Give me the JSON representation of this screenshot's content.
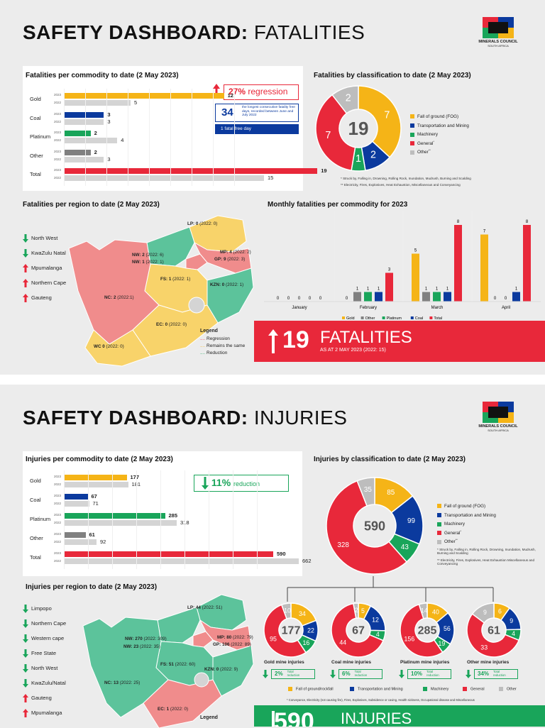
{
  "colors": {
    "gold": "#f5b417",
    "coal": "#0b3a9e",
    "platinum": "#19a55a",
    "general": "#e8283a",
    "other": "#bdbdbd",
    "y2022": "#d4d4d4",
    "bg": "#ececec",
    "teal": "#5cc39b",
    "pink": "#f08c8c",
    "yellow": "#f8d36a"
  },
  "fat": {
    "title_bold": "SAFETY DASHBOARD:",
    "title_light": "FATALITIES",
    "logo_text": "MINERALS COUNCIL",
    "logo_sub": "SOUTH AFRICA",
    "commodity_title": "Fatalities per commodity to date (2 May 2023)",
    "commodities": [
      {
        "name": "Gold",
        "v2023": 12,
        "v2022": 5,
        "y1": "2023",
        "y2": "2022"
      },
      {
        "name": "Coal",
        "v2023": 3,
        "v2022": 3,
        "y1": "2023",
        "y2": "2022"
      },
      {
        "name": "Platinum",
        "v2023": 2,
        "v2022": 4,
        "y1": "2023",
        "y2": "2022"
      },
      {
        "name": "Other",
        "v2023": 2,
        "v2022": 3,
        "y1": "2023",
        "y2": "2022"
      },
      {
        "name": "Total",
        "v2023": 19,
        "v2022": 15,
        "y1": "2023",
        "y2": "2022"
      }
    ],
    "regression_pct": "27%",
    "regression_word": "regression",
    "free_days": "34",
    "free_days_text": "the longest consecutive fatality free days, recorded between June and July 2022",
    "fatal_free": "1 fatal free day",
    "class_title": "Fatalities by classification to date (2 May 2023)",
    "class_total": "19",
    "class_values": [
      7,
      2,
      1,
      7,
      2
    ],
    "class_legend": [
      "Fall of ground (FOG)",
      "Transportation and Mining",
      "Machinery",
      "General",
      "Other"
    ],
    "class_legend_sup": [
      "",
      "",
      "",
      "*",
      "**"
    ],
    "class_note1": "* Struck by, Falling in, Drowning, Rolling Rock, Inundation, Mudrush, Burning and Scalding",
    "class_note2": "** Electricity, Fires, Explosives, Heat Exhaustion, Miscellaneous and Conveyancing",
    "region_title": "Fatalities per region to date (2 May 2023)",
    "region_list": [
      "North West",
      "KwaZulu Natal",
      "Mpumalanga",
      "Northern Cape",
      "Gauteng"
    ],
    "region_dir": [
      "down",
      "down",
      "up",
      "up",
      "up"
    ],
    "region_labels": {
      "lp": "LP: 0",
      "lp_s": "(2022: 0)",
      "nw2": "NW: 2",
      "nw2_s": "(2022: 6)",
      "nw1": "NW: 1",
      "nw1_s": "(2022: 1)",
      "mp": "MP: 4",
      "mp_s": "(2022: 2)",
      "gp": "GP: 9",
      "gp_s": "(2022: 3)",
      "fs": "FS: 1",
      "fs_s": "(2022: 1)",
      "kzn": "KZN: 0",
      "kzn_s": "(2022: 1)",
      "nc": "NC: 2",
      "nc_s": "(2022:1)",
      "ec": "EC: 0",
      "ec_s": "(2022: 0)",
      "wc": "WC 0",
      "wc_s": "(2022: 0)"
    },
    "legend_title": "Legend",
    "legend_items": [
      "Regression",
      "Remains the same",
      "Reduction"
    ],
    "monthly_title": "Monthly fatalities per commodity for 2023",
    "months": [
      "January",
      "February",
      "March",
      "April"
    ],
    "monthly": {
      "Gold": [
        0,
        0,
        5,
        7
      ],
      "Other": [
        0,
        1,
        1,
        0
      ],
      "Platinum": [
        0,
        1,
        1,
        0
      ],
      "Coal": [
        0,
        1,
        1,
        1
      ],
      "Total": [
        0,
        3,
        8,
        8
      ]
    },
    "monthly_legend": [
      "Gold",
      "Other",
      "Platinum",
      "Coal",
      "Total"
    ],
    "banner_num": "19",
    "banner_word": "FATALITIES",
    "banner_sub": "AS AT 2 MAY 2023 (2022: 15)"
  },
  "inj": {
    "title_bold": "SAFETY DASHBOARD:",
    "title_light": "INJURIES",
    "logo_text": "MINERALS COUNCIL",
    "logo_sub": "SOUTH AFRICA",
    "commodity_title": "Injuries per commodity to date (2 May 2023)",
    "commodities": [
      {
        "name": "Gold",
        "v2023": 177,
        "v2022": 181,
        "y1": "2023",
        "y2": "2022"
      },
      {
        "name": "Coal",
        "v2023": 67,
        "v2022": 71,
        "y1": "2023",
        "y2": "2022"
      },
      {
        "name": "Platinum",
        "v2023": 285,
        "v2022": 318,
        "y1": "2023",
        "y2": "2022"
      },
      {
        "name": "Other",
        "v2023": 61,
        "v2022": 92,
        "y1": "2023",
        "y2": "2022"
      },
      {
        "name": "Total",
        "v2023": 590,
        "v2022": 662,
        "y1": "2023",
        "y2": "2022"
      }
    ],
    "reduction_pct": "11%",
    "reduction_word": "reduction",
    "class_title": "Injuries by classification to date (2 May 2023)",
    "class_total": "590",
    "class_values": [
      85,
      99,
      43,
      328,
      35
    ],
    "class_legend": [
      "Fall of ground (FOG)",
      "Transportation and Mining",
      "Machinery",
      "General",
      "Other"
    ],
    "class_legend_sup": [
      "",
      "",
      "",
      "*",
      "**"
    ],
    "class_note1": "* Struck by, Falling in, Rolling Rock, Drowning, Inundation, Mudrush, Burning and Scalding",
    "class_note2": "** Electricity, Fires, Explosives, Heat Exhaustion Miscellaneous and Conveyancing",
    "region_title": "Injuries per region to date (2 May 2023)",
    "region_list": [
      "Limpopo",
      "Northern Cape",
      "Western cape",
      "Free State",
      "North West",
      "KwaZulu/Natal",
      "Gauteng",
      "Mpumalanga"
    ],
    "region_dir": [
      "down",
      "down",
      "down",
      "down",
      "down",
      "down",
      "up",
      "up"
    ],
    "region_labels": {
      "lp": "LP: 44",
      "lp_s": "(2022: 51)",
      "nw1": "NW: 270",
      "nw1_s": "(2022: 309)",
      "nw2": "NW: 23",
      "nw2_s": "(2022: 35)",
      "mp": "MP: 80",
      "mp_s": "(2022: 79)",
      "gp": "GP: 106",
      "gp_s": "(2022: 89)",
      "fs": "FS: 51",
      "fs_s": "(2022: 60)",
      "kzn": "KZN: 0",
      "kzn_s": "(2022: 9)",
      "nc": "NC: 13",
      "nc_s": "(2022: 25)",
      "ec": "EC: 1",
      "ec_s": "(2022: 0)"
    },
    "legend_title": "Legend",
    "mines": [
      {
        "total": "177",
        "values": [
          34,
          22,
          16,
          95,
          10
        ],
        "title": "Gold mine injuries",
        "pct": "2%",
        "word": "Total reduction"
      },
      {
        "total": "67",
        "values": [
          5,
          12,
          4,
          44,
          2
        ],
        "title": "Coal mine injuries",
        "pct": "6%",
        "word": "Total reduction"
      },
      {
        "total": "285",
        "values": [
          40,
          56,
          19,
          156,
          14
        ],
        "title": "Platinum mine injuries",
        "pct": "10%",
        "word": "Total reduction"
      },
      {
        "total": "61",
        "values": [
          6,
          9,
          4,
          33,
          9
        ],
        "title": "Other mine injuries",
        "pct": "34%",
        "word": "Total reduction"
      }
    ],
    "mine_legend": [
      "Fall of ground/rockfall",
      "Transportation and Mining",
      "Machinery",
      "General",
      "Other"
    ],
    "mine_note": "* Conveyance, Electricity (not causing fire), Fires, Explosives, Subsidence or caving, Health sickness, Occupational disease and Miscellaneous",
    "banner_num": "590",
    "banner_word": "INJURIES"
  }
}
